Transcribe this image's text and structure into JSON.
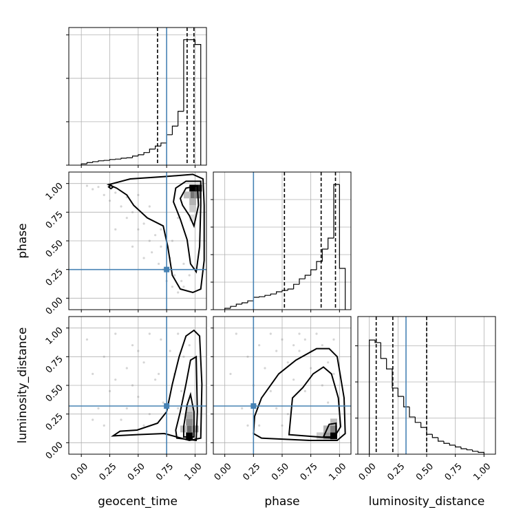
{
  "chart_data": {
    "type": "corner",
    "parameters": [
      "geocent_time",
      "phase",
      "luminosity_distance"
    ],
    "truths": [
      0.75,
      0.25,
      0.32
    ],
    "truth_color": "#4682b4",
    "point_color": "#888888",
    "grid": true,
    "lims": [
      [
        -0.11,
        1.1
      ],
      [
        -0.1,
        1.1
      ],
      [
        -0.1,
        1.1
      ]
    ],
    "ticks": [
      {
        "value": 0,
        "label": "0.00"
      },
      {
        "value": 0.25,
        "label": "0.25"
      },
      {
        "value": 0.5,
        "label": "0.50"
      },
      {
        "value": 0.75,
        "label": "0.75"
      },
      {
        "value": 1,
        "label": "1.00"
      }
    ],
    "histograms": [
      {
        "bins": [
          0,
          0.05,
          0.1,
          0.15,
          0.2,
          0.25,
          0.3,
          0.35,
          0.4,
          0.45,
          0.5,
          0.55,
          0.6,
          0.65,
          0.7,
          0.75,
          0.8,
          0.85,
          0.9,
          0.95,
          1.0,
          1.05
        ],
        "counts": [
          0.03,
          0.06,
          0.08,
          0.1,
          0.11,
          0.13,
          0.14,
          0.16,
          0.17,
          0.21,
          0.24,
          0.29,
          0.37,
          0.44,
          0.51,
          0.7,
          0.9,
          1.24,
          2.89,
          2.89,
          2.78
        ],
        "quantiles": [
          0.67,
          0.93,
          0.99
        ],
        "ylim": [
          0,
          3.17
        ],
        "yticks": [
          0,
          1,
          2,
          3
        ]
      },
      {
        "bins": [
          0,
          0.05,
          0.1,
          0.15,
          0.2,
          0.25,
          0.3,
          0.35,
          0.4,
          0.45,
          0.5,
          0.55,
          0.6,
          0.65,
          0.7,
          0.75,
          0.8,
          0.85,
          0.9,
          0.95,
          1.0,
          1.05
        ],
        "counts": [
          0.05,
          0.12,
          0.2,
          0.25,
          0.32,
          0.45,
          0.47,
          0.52,
          0.57,
          0.65,
          0.7,
          0.75,
          0.92,
          1.12,
          1.25,
          1.45,
          1.75,
          2.2,
          2.6,
          4.55,
          1.5
        ],
        "quantiles": [
          0.52,
          0.84,
          0.965
        ],
        "ylim": [
          0,
          5
        ],
        "yticks": [
          0,
          1,
          2,
          3,
          4
        ]
      },
      {
        "bins": [
          0,
          0.05,
          0.1,
          0.15,
          0.2,
          0.25,
          0.3,
          0.35,
          0.4,
          0.45,
          0.5,
          0.55,
          0.6,
          0.65,
          0.7,
          0.75,
          0.8,
          0.85,
          0.9,
          0.95,
          1.0
        ],
        "counts": [
          3.16,
          3.09,
          2.65,
          2.36,
          1.83,
          1.6,
          1.31,
          1.03,
          0.88,
          0.74,
          0.55,
          0.46,
          0.36,
          0.3,
          0.25,
          0.2,
          0.15,
          0.12,
          0.08,
          0.05
        ],
        "quantiles": [
          0.06,
          0.205,
          0.5
        ],
        "ylim": [
          0,
          3.81
        ],
        "yticks": [
          0,
          1,
          2,
          3
        ]
      }
    ],
    "panels": [
      [
        {
          "points": {
            "x": [
              0.05,
              0.1,
              0.15,
              0.2,
              0.25,
              0.3,
              0.35,
              0.4,
              0.45,
              0.5,
              0.55,
              0.6,
              0.62,
              0.65,
              0.68,
              0.7,
              0.72,
              0.75,
              0.78,
              0.8,
              0.82,
              0.85,
              0.88,
              0.9,
              0.3,
              0.45,
              0.55,
              0.6,
              0.7,
              0.8,
              0.85,
              0.9,
              0.95,
              0.5,
              0.4
            ],
            "y": [
              0.98,
              0.95,
              0.97,
              0.9,
              0.85,
              0.92,
              0.8,
              0.7,
              0.75,
              0.6,
              0.65,
              0.5,
              0.4,
              0.55,
              0.3,
              0.45,
              0.25,
              0.15,
              0.35,
              0.1,
              0.2,
              0.05,
              0.15,
              0.3,
              0.6,
              0.45,
              0.35,
              0.8,
              0.6,
              0.5,
              0.7,
              0.1,
              0.2,
              0.9,
              0.88
            ]
          },
          "cells": {
            "x": [
              0.98,
              1.03,
              0.98,
              1.02,
              0.98,
              0.98,
              0.93,
              0.98
            ],
            "y": [
              0.96,
              0.96,
              0.9,
              0.9,
              0.84,
              0.78,
              0.9,
              0.7
            ],
            "value": [
              1,
              0.9,
              0.55,
              0.45,
              0.3,
              0.2,
              0.25,
              0.12
            ]
          },
          "contours": [
            {
              "x": [
                0.24,
                0.43,
                0.73,
                0.98,
                1.07,
                1.08,
                1.08,
                1.05,
                0.98,
                0.87,
                0.8,
                0.76,
                0.72,
                0.58,
                0.46,
                0.4,
                0.31
              ],
              "y": [
                0.99,
                1.04,
                1.06,
                1.08,
                1.04,
                0.81,
                0.33,
                0.08,
                0.05,
                0.08,
                0.2,
                0.45,
                0.63,
                0.7,
                0.81,
                0.9,
                0.96
              ]
            },
            {
              "x": [
                0.83,
                0.92,
                1.05,
                1.05,
                1.04,
                1.01,
                0.96,
                0.93,
                0.87,
                0.81
              ],
              "y": [
                0.96,
                1.02,
                1.02,
                0.81,
                0.45,
                0.23,
                0.3,
                0.51,
                0.69,
                0.84
              ]
            },
            {
              "x": [
                0.87,
                0.92,
                1.02,
                1.03,
                0.99,
                0.95,
                0.89
              ],
              "y": [
                0.87,
                0.96,
                0.98,
                0.81,
                0.63,
                0.72,
                0.81
              ]
            },
            {
              "x": [
                0.24,
                0.26,
                0.28,
                0.26
              ],
              "y": [
                0.97,
                0.985,
                0.97,
                0.955
              ]
            }
          ]
        }
      ],
      [
        {
          "points": {
            "x": [
              0.05,
              0.1,
              0.15,
              0.2,
              0.25,
              0.3,
              0.35,
              0.4,
              0.45,
              0.5,
              0.55,
              0.6,
              0.65,
              0.7,
              0.72,
              0.78,
              0.82,
              0.85,
              0.88,
              0.9,
              0.2,
              0.4,
              0.55,
              0.6,
              0.68,
              0.75,
              0.3,
              0.5,
              0.85,
              0.95,
              0.1,
              0.45
            ],
            "y": [
              0.9,
              0.6,
              0.3,
              0.75,
              0.45,
              0.95,
              0.2,
              0.65,
              0.85,
              0.4,
              0.7,
              0.25,
              0.55,
              0.9,
              0.35,
              0.8,
              0.6,
              0.95,
              0.45,
              0.75,
              0.15,
              0.3,
              0.15,
              0.95,
              0.6,
              0.1,
              0.55,
              0.8,
              0.3,
              0.85,
              0.2,
              0.5
            ]
          },
          "cells": {
            "x": [
              0.95,
              0.95,
              0.95,
              0.95,
              1.0,
              0.95,
              0.9
            ],
            "y": [
              0.06,
              0.12,
              0.18,
              0.24,
              0.12,
              0.3,
              0.12
            ],
            "value": [
              1,
              0.6,
              0.45,
              0.35,
              0.4,
              0.2,
              0.25
            ]
          },
          "contours": [
            {
              "x": [
                0.28,
                0.49,
                0.73,
                0.95,
                1.05,
                1.06,
                1.04,
                0.99,
                0.92,
                0.86,
                0.8,
                0.75,
                0.67,
                0.49,
                0.34
              ],
              "y": [
                0.06,
                0.07,
                0.08,
                0.02,
                0.04,
                0.51,
                0.93,
                0.98,
                0.93,
                0.75,
                0.51,
                0.27,
                0.17,
                0.11,
                0.1
              ]
            },
            {
              "x": [
                0.84,
                1.01,
                1.02,
                1.01,
                0.96,
                0.92,
                0.87,
                0.83
              ],
              "y": [
                0.04,
                0.02,
                0.27,
                0.75,
                0.72,
                0.51,
                0.27,
                0.11
              ]
            },
            {
              "x": [
                0.9,
                0.99,
                0.99,
                0.96,
                0.93,
                0.9
              ],
              "y": [
                0.05,
                0.05,
                0.27,
                0.42,
                0.33,
                0.14
              ]
            }
          ]
        },
        {
          "points": {
            "x": [
              0.05,
              0.1,
              0.15,
              0.2,
              0.25,
              0.3,
              0.35,
              0.4,
              0.45,
              0.5,
              0.55,
              0.6,
              0.65,
              0.7,
              0.75,
              0.8,
              0.85,
              0.9,
              0.95,
              0.3,
              0.45,
              0.55,
              0.65,
              0.75,
              0.85,
              0.9,
              0.2,
              0.6,
              0.7,
              0.95,
              0.5,
              0.4
            ],
            "y": [
              0.6,
              0.95,
              0.3,
              0.75,
              0.5,
              0.85,
              0.65,
              0.95,
              0.8,
              0.9,
              0.7,
              0.85,
              0.95,
              0.9,
              0.8,
              0.95,
              0.85,
              0.7,
              0.9,
              0.15,
              0.3,
              0.25,
              0.8,
              0.65,
              0.5,
              0.35,
              0.15,
              0.55,
              0.45,
              0.6,
              0.15,
              0.45
            ]
          },
          "cells": {
            "x": [
              0.95,
              0.95,
              0.89,
              0.89,
              0.83,
              0.95
            ],
            "y": [
              0.06,
              0.12,
              0.06,
              0.12,
              0.06,
              0.18
            ],
            "value": [
              1,
              0.5,
              0.4,
              0.3,
              0.2,
              0.25
            ]
          },
          "contours": [
            {
              "x": [
                0.25,
                0.32,
                0.74,
                0.98,
                1.05,
                1.04,
                0.98,
                0.91,
                0.8,
                0.62,
                0.47,
                0.32,
                0.26
              ],
              "y": [
                0.08,
                0.04,
                0.02,
                0.02,
                0.08,
                0.39,
                0.75,
                0.82,
                0.82,
                0.72,
                0.6,
                0.39,
                0.23
              ]
            },
            {
              "x": [
                0.56,
                0.95,
                1.01,
                0.99,
                0.93,
                0.86,
                0.77,
                0.68,
                0.59
              ],
              "y": [
                0.07,
                0.04,
                0.14,
                0.39,
                0.6,
                0.66,
                0.6,
                0.48,
                0.39
              ]
            },
            {
              "x": [
                0.86,
                0.97,
                0.97,
                0.91
              ],
              "y": [
                0.05,
                0.05,
                0.17,
                0.16
              ]
            }
          ]
        }
      ]
    ]
  }
}
